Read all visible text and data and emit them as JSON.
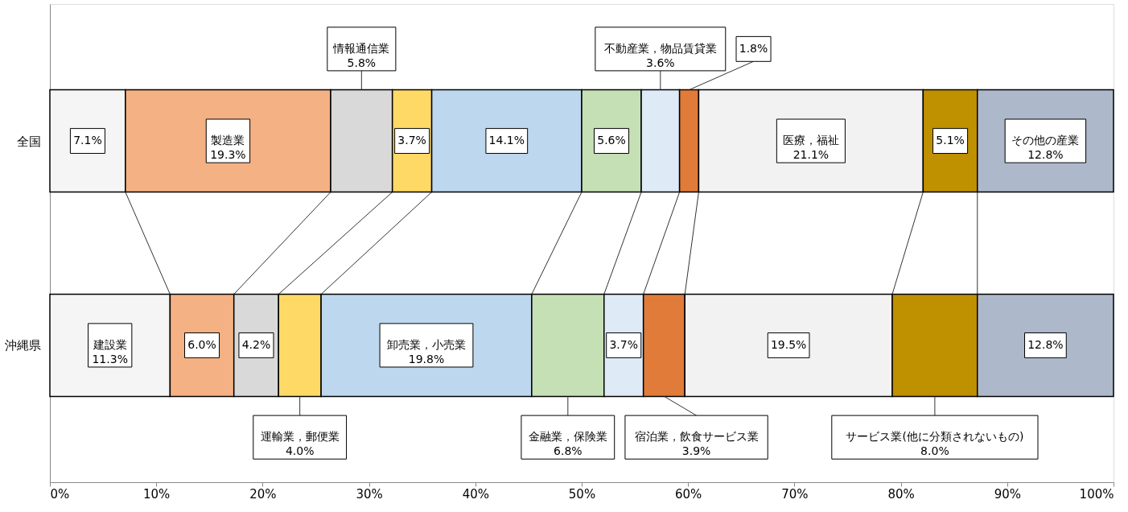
{
  "chart_data": {
    "type": "bar",
    "orientation": "horizontal",
    "stacked": true,
    "legend": false,
    "grid": false,
    "categories": [
      "全国",
      "沖縄県"
    ],
    "xlim": [
      0,
      100
    ],
    "xticks": [
      {
        "value": 0,
        "label": "0%"
      },
      {
        "value": 10,
        "label": "10%"
      },
      {
        "value": 20,
        "label": "20%"
      },
      {
        "value": 30,
        "label": "30%"
      },
      {
        "value": 40,
        "label": "40%"
      },
      {
        "value": 50,
        "label": "50%"
      },
      {
        "value": 60,
        "label": "60%"
      },
      {
        "value": 70,
        "label": "70%"
      },
      {
        "value": 80,
        "label": "80%"
      },
      {
        "value": 90,
        "label": "90%"
      },
      {
        "value": 100,
        "label": "100%"
      }
    ],
    "series": [
      {
        "color": "#f5f5f5",
        "values": [
          7.1,
          11.3
        ],
        "value_labels": [
          "7.1%",
          "建設業\n11.3%"
        ]
      },
      {
        "color": "#f4b183",
        "values": [
          19.3,
          6.0
        ],
        "value_labels": [
          "製造業\n19.3%",
          "6.0%"
        ]
      },
      {
        "color": "#d9d9d9",
        "values": [
          5.8,
          4.2
        ],
        "value_labels": [
          "情報通信業\n5.8%",
          "4.2%"
        ]
      },
      {
        "color": "#ffd966",
        "values": [
          3.7,
          4.0
        ],
        "value_labels": [
          "3.7%",
          "運輸業，郵便業\n4.0%"
        ]
      },
      {
        "color": "#bdd7ee",
        "values": [
          14.1,
          19.8
        ],
        "value_labels": [
          "14.1%",
          "卸売業，小売業\n19.8%"
        ]
      },
      {
        "color": "#c5e0b4",
        "values": [
          5.6,
          6.8
        ],
        "value_labels": [
          "5.6%",
          "金融業，保険業\n6.8%"
        ]
      },
      {
        "color": "#deebf7",
        "values": [
          3.6,
          3.7
        ],
        "value_labels": [
          "不動産業，物品賃貸業\n3.6%",
          "3.7%"
        ]
      },
      {
        "color": "#e07b39",
        "values": [
          1.8,
          3.9
        ],
        "value_labels": [
          "1.8%",
          "宿泊業，飲食サービス業\n3.9%"
        ]
      },
      {
        "color": "#f2f2f2",
        "values": [
          21.1,
          19.5
        ],
        "value_labels": [
          "医療，福祉\n21.1%",
          "19.5%"
        ]
      },
      {
        "color": "#bf9000",
        "values": [
          5.1,
          8.0
        ],
        "value_labels": [
          "5.1%",
          "サービス業(他に分類されないもの)\n8.0%"
        ]
      },
      {
        "color": "#adb9ca",
        "values": [
          12.8,
          12.8
        ],
        "value_labels": [
          "その他の産業\n12.8%",
          "12.8%"
        ]
      }
    ]
  }
}
